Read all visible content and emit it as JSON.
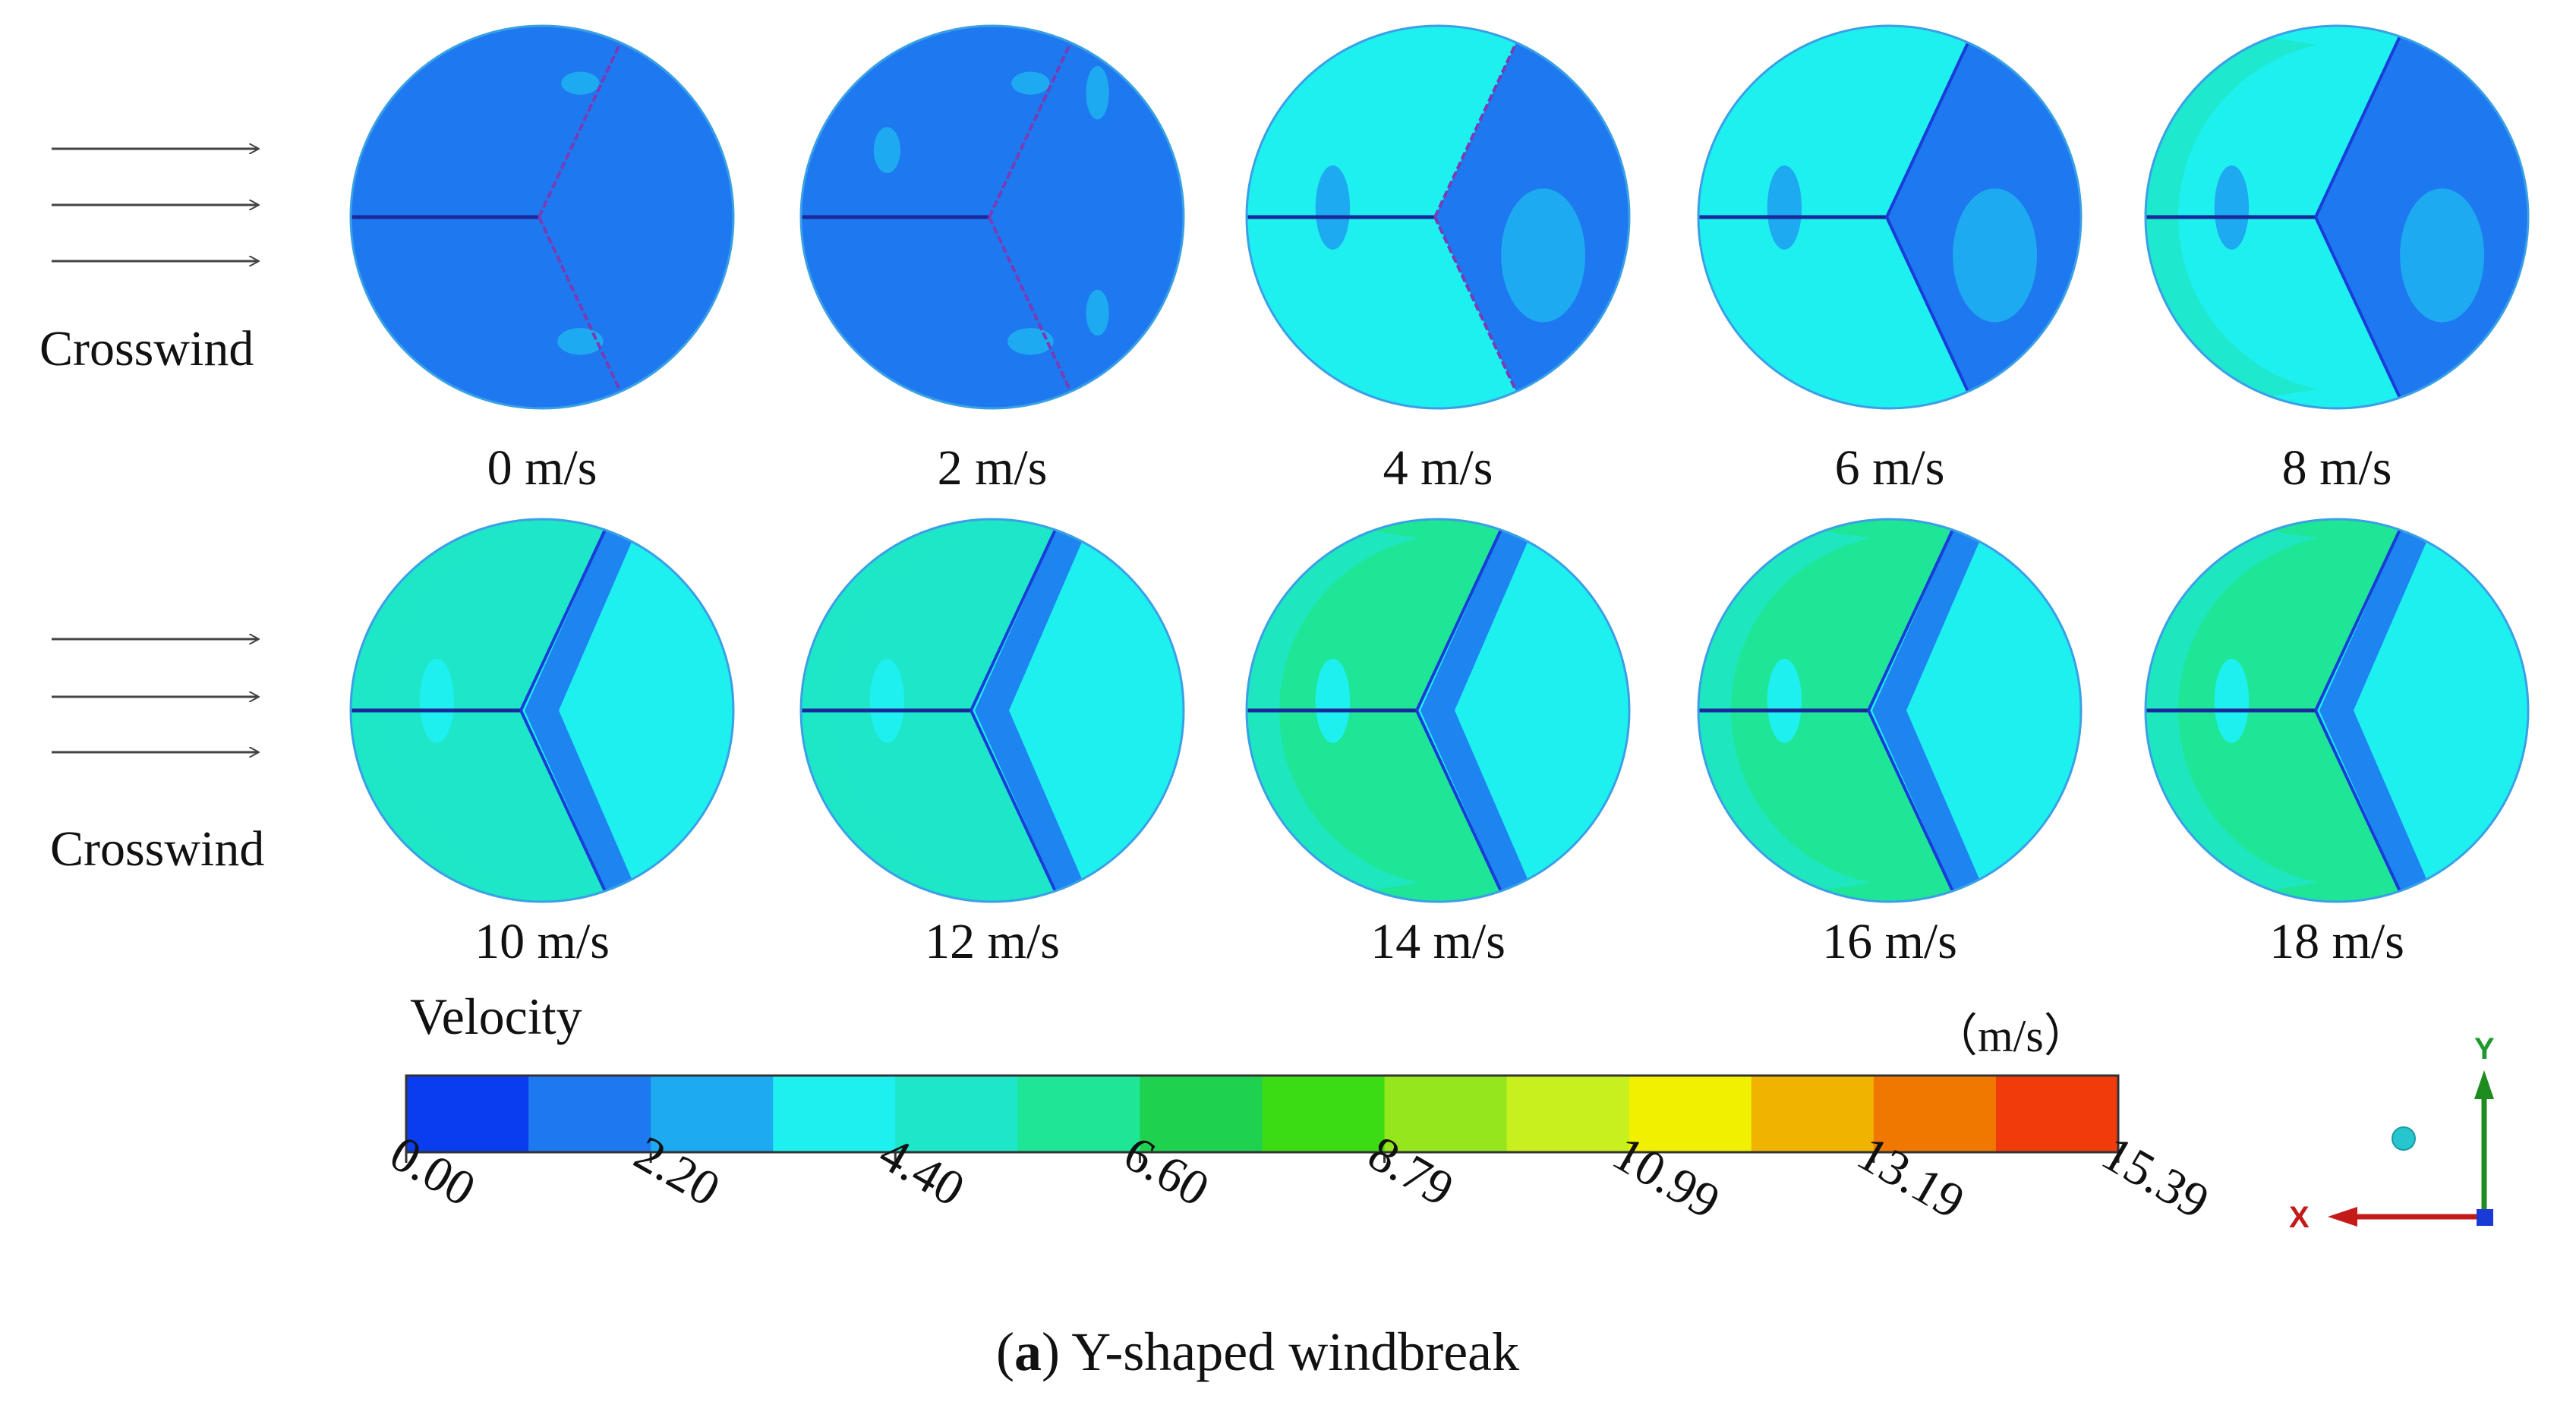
{
  "figure": {
    "caption_label": "a",
    "caption_text": "Y-shaped windbreak",
    "crosswind_label": "Crosswind",
    "row1_crosswind_label": "Crosswind",
    "row2_crosswind_label": "Crosswind"
  },
  "panels": [
    {
      "label": "0 m/s",
      "speed": 0
    },
    {
      "label": "2 m/s",
      "speed": 2
    },
    {
      "label": "4 m/s",
      "speed": 4
    },
    {
      "label": "6 m/s",
      "speed": 6
    },
    {
      "label": "8 m/s",
      "speed": 8
    },
    {
      "label": "10 m/s",
      "speed": 10
    },
    {
      "label": "12 m/s",
      "speed": 12
    },
    {
      "label": "14 m/s",
      "speed": 14
    },
    {
      "label": "16 m/s",
      "speed": 16
    },
    {
      "label": "18 m/s",
      "speed": 18
    }
  ],
  "colorbar": {
    "title": "Velocity",
    "unit": "（m/s）",
    "tick_labels": [
      "0.00",
      "2.20",
      "4.40",
      "6.60",
      "8.79",
      "10.99",
      "13.19",
      "15.39"
    ],
    "colors": [
      "#0a3cf0",
      "#1e78f0",
      "#1eaaf0",
      "#1ef0f0",
      "#1ee6c8",
      "#1ee696",
      "#1ed250",
      "#3cdc14",
      "#96e61e",
      "#c8f01e",
      "#f0f000",
      "#f0b400",
      "#f07800",
      "#f03c0a"
    ]
  },
  "axes_triad": {
    "y_label": "Y",
    "x_label": "X"
  },
  "chart_data": {
    "type": "heatmap",
    "title": "Y-shaped windbreak",
    "variable": "Velocity",
    "unit": "m/s",
    "colorbar_range": [
      0.0,
      15.39
    ],
    "colorbar_ticks": [
      0.0,
      2.2,
      4.4,
      6.6,
      8.79,
      10.99,
      13.19,
      15.39
    ],
    "crosswind_speeds": [
      0,
      2,
      4,
      6,
      8,
      10,
      12,
      14,
      16,
      18
    ]
  }
}
